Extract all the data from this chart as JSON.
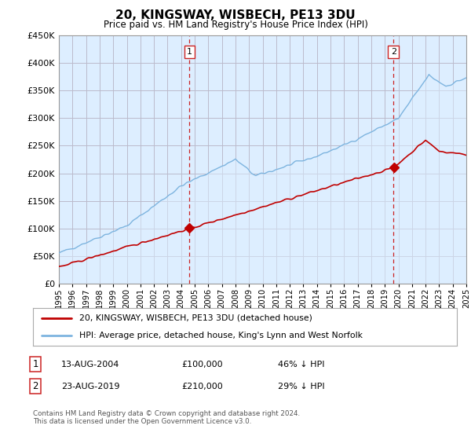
{
  "title": "20, KINGSWAY, WISBECH, PE13 3DU",
  "subtitle": "Price paid vs. HM Land Registry's House Price Index (HPI)",
  "legend_line1": "20, KINGSWAY, WISBECH, PE13 3DU (detached house)",
  "legend_line2": "HPI: Average price, detached house, King's Lynn and West Norfolk",
  "annotation1_label": "1",
  "annotation1_date": "13-AUG-2004",
  "annotation1_price": "£100,000",
  "annotation1_hpi": "46% ↓ HPI",
  "annotation1_year": 2004.62,
  "annotation1_value": 100000,
  "annotation2_label": "2",
  "annotation2_date": "23-AUG-2019",
  "annotation2_price": "£210,000",
  "annotation2_hpi": "29% ↓ HPI",
  "annotation2_year": 2019.64,
  "annotation2_value": 210000,
  "footer": "Contains HM Land Registry data © Crown copyright and database right 2024.\nThis data is licensed under the Open Government Licence v3.0.",
  "hpi_color": "#7db4df",
  "hpi_fill_color": "#ddeeff",
  "price_color": "#c00000",
  "vline_color": "#cc2222",
  "background_color": "#ffffff",
  "chart_bg_color": "#ddeeff",
  "grid_color": "#bbbbcc",
  "ylim": [
    0,
    450000
  ],
  "xlim_start": 1995,
  "xlim_end": 2025,
  "yticks": [
    0,
    50000,
    100000,
    150000,
    200000,
    250000,
    300000,
    350000,
    400000,
    450000
  ],
  "xticks": [
    1995,
    1996,
    1997,
    1998,
    1999,
    2000,
    2001,
    2002,
    2003,
    2004,
    2005,
    2006,
    2007,
    2008,
    2009,
    2010,
    2011,
    2012,
    2013,
    2014,
    2015,
    2016,
    2017,
    2018,
    2019,
    2020,
    2021,
    2022,
    2023,
    2024,
    2025
  ]
}
